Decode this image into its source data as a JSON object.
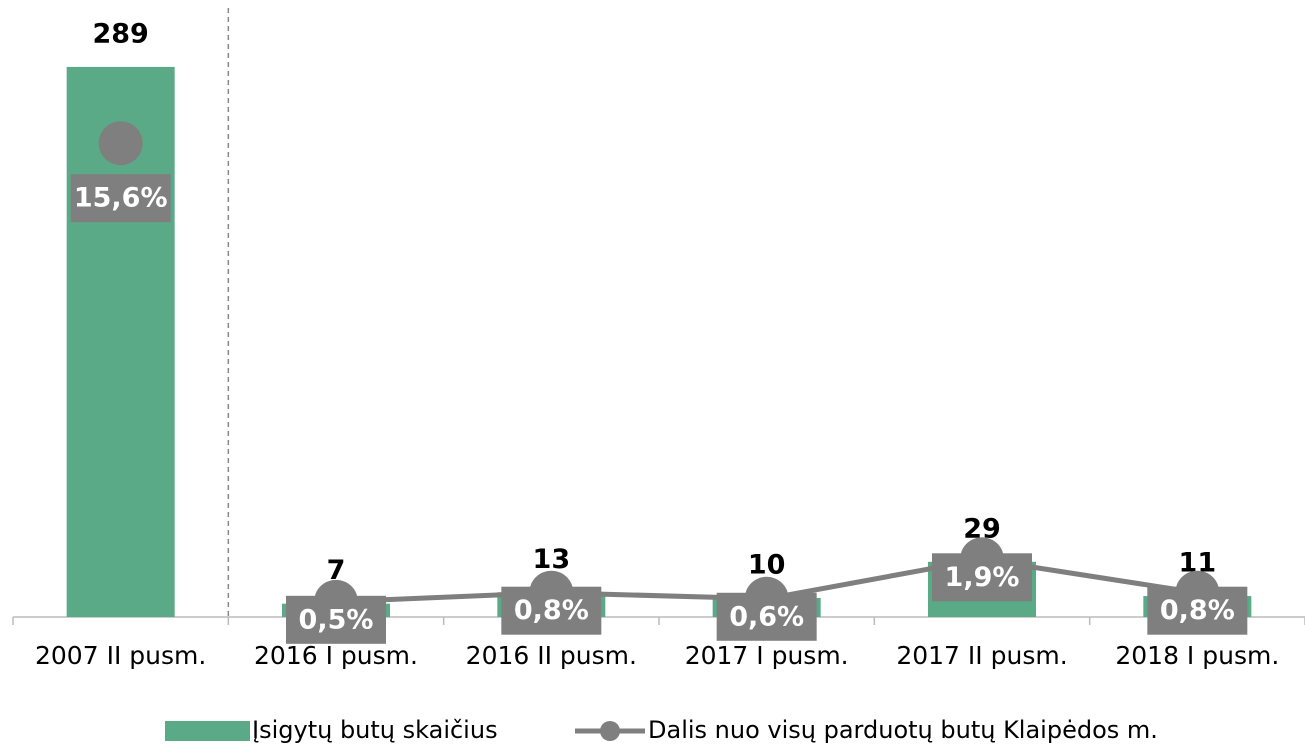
{
  "chart_data": {
    "type": "bar-line",
    "categories": [
      "2007 II pusm.",
      "2016 I pusm.",
      "2016 II pusm.",
      "2017 I pusm.",
      "2017 II pusm.",
      "2018 I pusm."
    ],
    "series": [
      {
        "name": "Įsigytų butų skaičius",
        "color": "#5aaa88",
        "type": "bar",
        "values": [
          289,
          7,
          13,
          10,
          29,
          11
        ]
      },
      {
        "name": "Dalis nuo visų parduotų butų Klaipėdos m.",
        "color": "#7f7f7f",
        "type": "line",
        "axis": "y2",
        "values": [
          15.6,
          0.5,
          0.8,
          0.6,
          1.9,
          0.8
        ],
        "value_labels": [
          "15,6%",
          "0,5%",
          "0,8%",
          "0,6%",
          "1,9%",
          "0,8%"
        ]
      }
    ],
    "ylim": [
      0,
      300
    ],
    "y2lim": [
      0,
      18.8
    ]
  }
}
